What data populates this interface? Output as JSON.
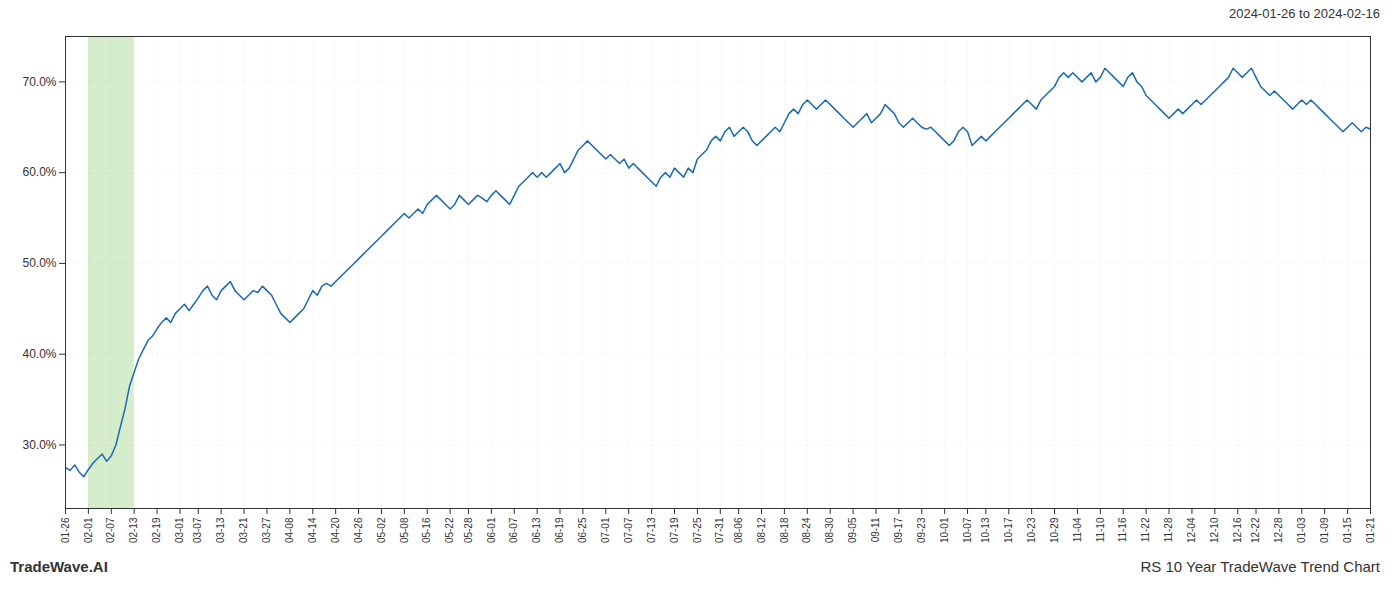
{
  "chart_data": {
    "type": "line",
    "title": "RS 10 Year TradeWave Trend Chart",
    "subtitle": "2024-01-26 to 2024-02-16",
    "annotations": [
      "TradeWave.AI"
    ],
    "color": "#1a6ab5",
    "grid": true,
    "ylim": [
      23,
      75
    ],
    "yticks": [
      {
        "value": 30,
        "label": "30.0%"
      },
      {
        "value": 40,
        "label": "40.0%"
      },
      {
        "value": 50,
        "label": "50.0%"
      },
      {
        "value": 60,
        "label": "60.0%"
      },
      {
        "value": 70,
        "label": "70.0%"
      }
    ],
    "highlight": {
      "from": "02-01",
      "to": "02-13",
      "color": "#d6edcc"
    },
    "categories": [
      "01-26",
      null,
      null,
      null,
      null,
      "02-01",
      null,
      null,
      null,
      null,
      "02-07",
      null,
      null,
      null,
      null,
      "02-13",
      null,
      null,
      null,
      null,
      "02-19",
      null,
      null,
      null,
      null,
      "03-01",
      null,
      null,
      null,
      "03-07",
      null,
      null,
      null,
      null,
      "03-13",
      null,
      null,
      null,
      null,
      "03-21",
      null,
      null,
      null,
      null,
      "03-27",
      null,
      null,
      null,
      null,
      "04-08",
      null,
      null,
      null,
      null,
      "04-14",
      null,
      null,
      null,
      null,
      "04-20",
      null,
      null,
      null,
      null,
      "04-26",
      null,
      null,
      null,
      null,
      "05-02",
      null,
      null,
      null,
      null,
      "05-08",
      null,
      null,
      null,
      null,
      "05-16",
      null,
      null,
      null,
      null,
      "05-22",
      null,
      null,
      null,
      "05-28",
      null,
      null,
      null,
      null,
      "06-01",
      null,
      null,
      null,
      null,
      "06-07",
      null,
      null,
      null,
      null,
      "06-13",
      null,
      null,
      null,
      null,
      "06-19",
      null,
      null,
      null,
      null,
      "06-25",
      null,
      null,
      null,
      null,
      "07-01",
      null,
      null,
      null,
      null,
      "07-07",
      null,
      null,
      null,
      null,
      "07-13",
      null,
      null,
      null,
      null,
      "07-19",
      null,
      null,
      null,
      null,
      "07-25",
      null,
      null,
      null,
      null,
      "07-31",
      null,
      null,
      null,
      "08-06",
      null,
      null,
      null,
      null,
      "08-12",
      null,
      null,
      null,
      null,
      "08-18",
      null,
      null,
      null,
      null,
      "08-24",
      null,
      null,
      null,
      null,
      "08-30",
      null,
      null,
      null,
      null,
      "09-05",
      null,
      null,
      null,
      null,
      "09-11",
      null,
      null,
      null,
      null,
      "09-17",
      null,
      null,
      null,
      null,
      "09-23",
      null,
      null,
      null,
      null,
      "10-01",
      null,
      null,
      null,
      null,
      "10-07",
      null,
      null,
      null,
      "10-13",
      null,
      null,
      null,
      null,
      "10-17",
      null,
      null,
      null,
      null,
      "10-23",
      null,
      null,
      null,
      null,
      "10-29",
      null,
      null,
      null,
      null,
      "11-04",
      null,
      null,
      null,
      null,
      "11-10",
      null,
      null,
      null,
      null,
      "11-16",
      null,
      null,
      null,
      null,
      "11-22",
      null,
      null,
      null,
      null,
      "11-28",
      null,
      null,
      null,
      null,
      "12-04",
      null,
      null,
      null,
      null,
      "12-10",
      null,
      null,
      null,
      null,
      "12-16",
      null,
      null,
      null,
      "12-22",
      null,
      null,
      null,
      null,
      "12-28",
      null,
      null,
      null,
      null,
      "01-03",
      null,
      null,
      null,
      null,
      "01-09",
      null,
      null,
      null,
      null,
      "01-15",
      null,
      null,
      null,
      null,
      "01-21"
    ],
    "values": [
      27.5,
      27.2,
      27.8,
      27.0,
      26.5,
      27.3,
      28.0,
      28.5,
      29.0,
      28.2,
      28.8,
      30.0,
      32.0,
      34.0,
      36.5,
      38.0,
      39.5,
      40.5,
      41.5,
      42.0,
      42.8,
      43.5,
      44.0,
      43.5,
      44.5,
      45.0,
      45.5,
      44.8,
      45.5,
      46.2,
      47.0,
      47.5,
      46.5,
      46.0,
      47.0,
      47.5,
      48.0,
      47.0,
      46.5,
      46.0,
      46.5,
      47.0,
      46.8,
      47.5,
      47.0,
      46.5,
      45.5,
      44.5,
      44.0,
      43.5,
      44.0,
      44.5,
      45.0,
      46.0,
      47.0,
      46.5,
      47.5,
      47.8,
      47.5,
      48.0,
      48.5,
      49.0,
      49.5,
      50.0,
      50.5,
      51.0,
      51.5,
      52.0,
      52.5,
      53.0,
      53.5,
      54.0,
      54.5,
      55.0,
      55.5,
      55.0,
      55.5,
      56.0,
      55.5,
      56.5,
      57.0,
      57.5,
      57.0,
      56.5,
      56.0,
      56.5,
      57.5,
      57.0,
      56.5,
      57.0,
      57.5,
      57.2,
      56.8,
      57.5,
      58.0,
      57.5,
      57.0,
      56.5,
      57.5,
      58.5,
      59.0,
      59.5,
      60.0,
      59.5,
      60.0,
      59.5,
      60.0,
      60.5,
      61.0,
      60.0,
      60.5,
      61.5,
      62.5,
      63.0,
      63.5,
      63.0,
      62.5,
      62.0,
      61.5,
      62.0,
      61.5,
      61.0,
      61.5,
      60.5,
      61.0,
      60.5,
      60.0,
      59.5,
      59.0,
      58.5,
      59.5,
      60.0,
      59.5,
      60.5,
      60.0,
      59.5,
      60.5,
      60.0,
      61.5,
      62.0,
      62.5,
      63.5,
      64.0,
      63.5,
      64.5,
      65.0,
      64.0,
      64.5,
      65.0,
      64.5,
      63.5,
      63.0,
      63.5,
      64.0,
      64.5,
      65.0,
      64.5,
      65.5,
      66.5,
      67.0,
      66.5,
      67.5,
      68.0,
      67.5,
      67.0,
      67.5,
      68.0,
      67.5,
      67.0,
      66.5,
      66.0,
      65.5,
      65.0,
      65.5,
      66.0,
      66.5,
      65.5,
      66.0,
      66.5,
      67.5,
      67.0,
      66.5,
      65.5,
      65.0,
      65.5,
      66.0,
      65.5,
      65.0,
      64.8,
      65.0,
      64.5,
      64.0,
      63.5,
      63.0,
      63.5,
      64.5,
      65.0,
      64.5,
      63.0,
      63.5,
      64.0,
      63.5,
      64.0,
      64.5,
      65.0,
      65.5,
      66.0,
      66.5,
      67.0,
      67.5,
      68.0,
      67.5,
      67.0,
      68.0,
      68.5,
      69.0,
      69.5,
      70.5,
      71.0,
      70.5,
      71.0,
      70.5,
      70.0,
      70.5,
      71.0,
      70.0,
      70.5,
      71.5,
      71.0,
      70.5,
      70.0,
      69.5,
      70.5,
      71.0,
      70.0,
      69.5,
      68.5,
      68.0,
      67.5,
      67.0,
      66.5,
      66.0,
      66.5,
      67.0,
      66.5,
      67.0,
      67.5,
      68.0,
      67.5,
      68.0,
      68.5,
      69.0,
      69.5,
      70.0,
      70.5,
      71.5,
      71.0,
      70.5,
      71.0,
      71.5,
      70.5,
      69.5,
      69.0,
      68.5,
      69.0,
      68.5,
      68.0,
      67.5,
      67.0,
      67.5,
      68.0,
      67.5,
      68.0,
      67.5,
      67.0,
      66.5,
      66.0,
      65.5,
      65.0,
      64.5,
      65.0,
      65.5,
      65.0,
      64.5,
      65.0,
      64.8
    ]
  }
}
